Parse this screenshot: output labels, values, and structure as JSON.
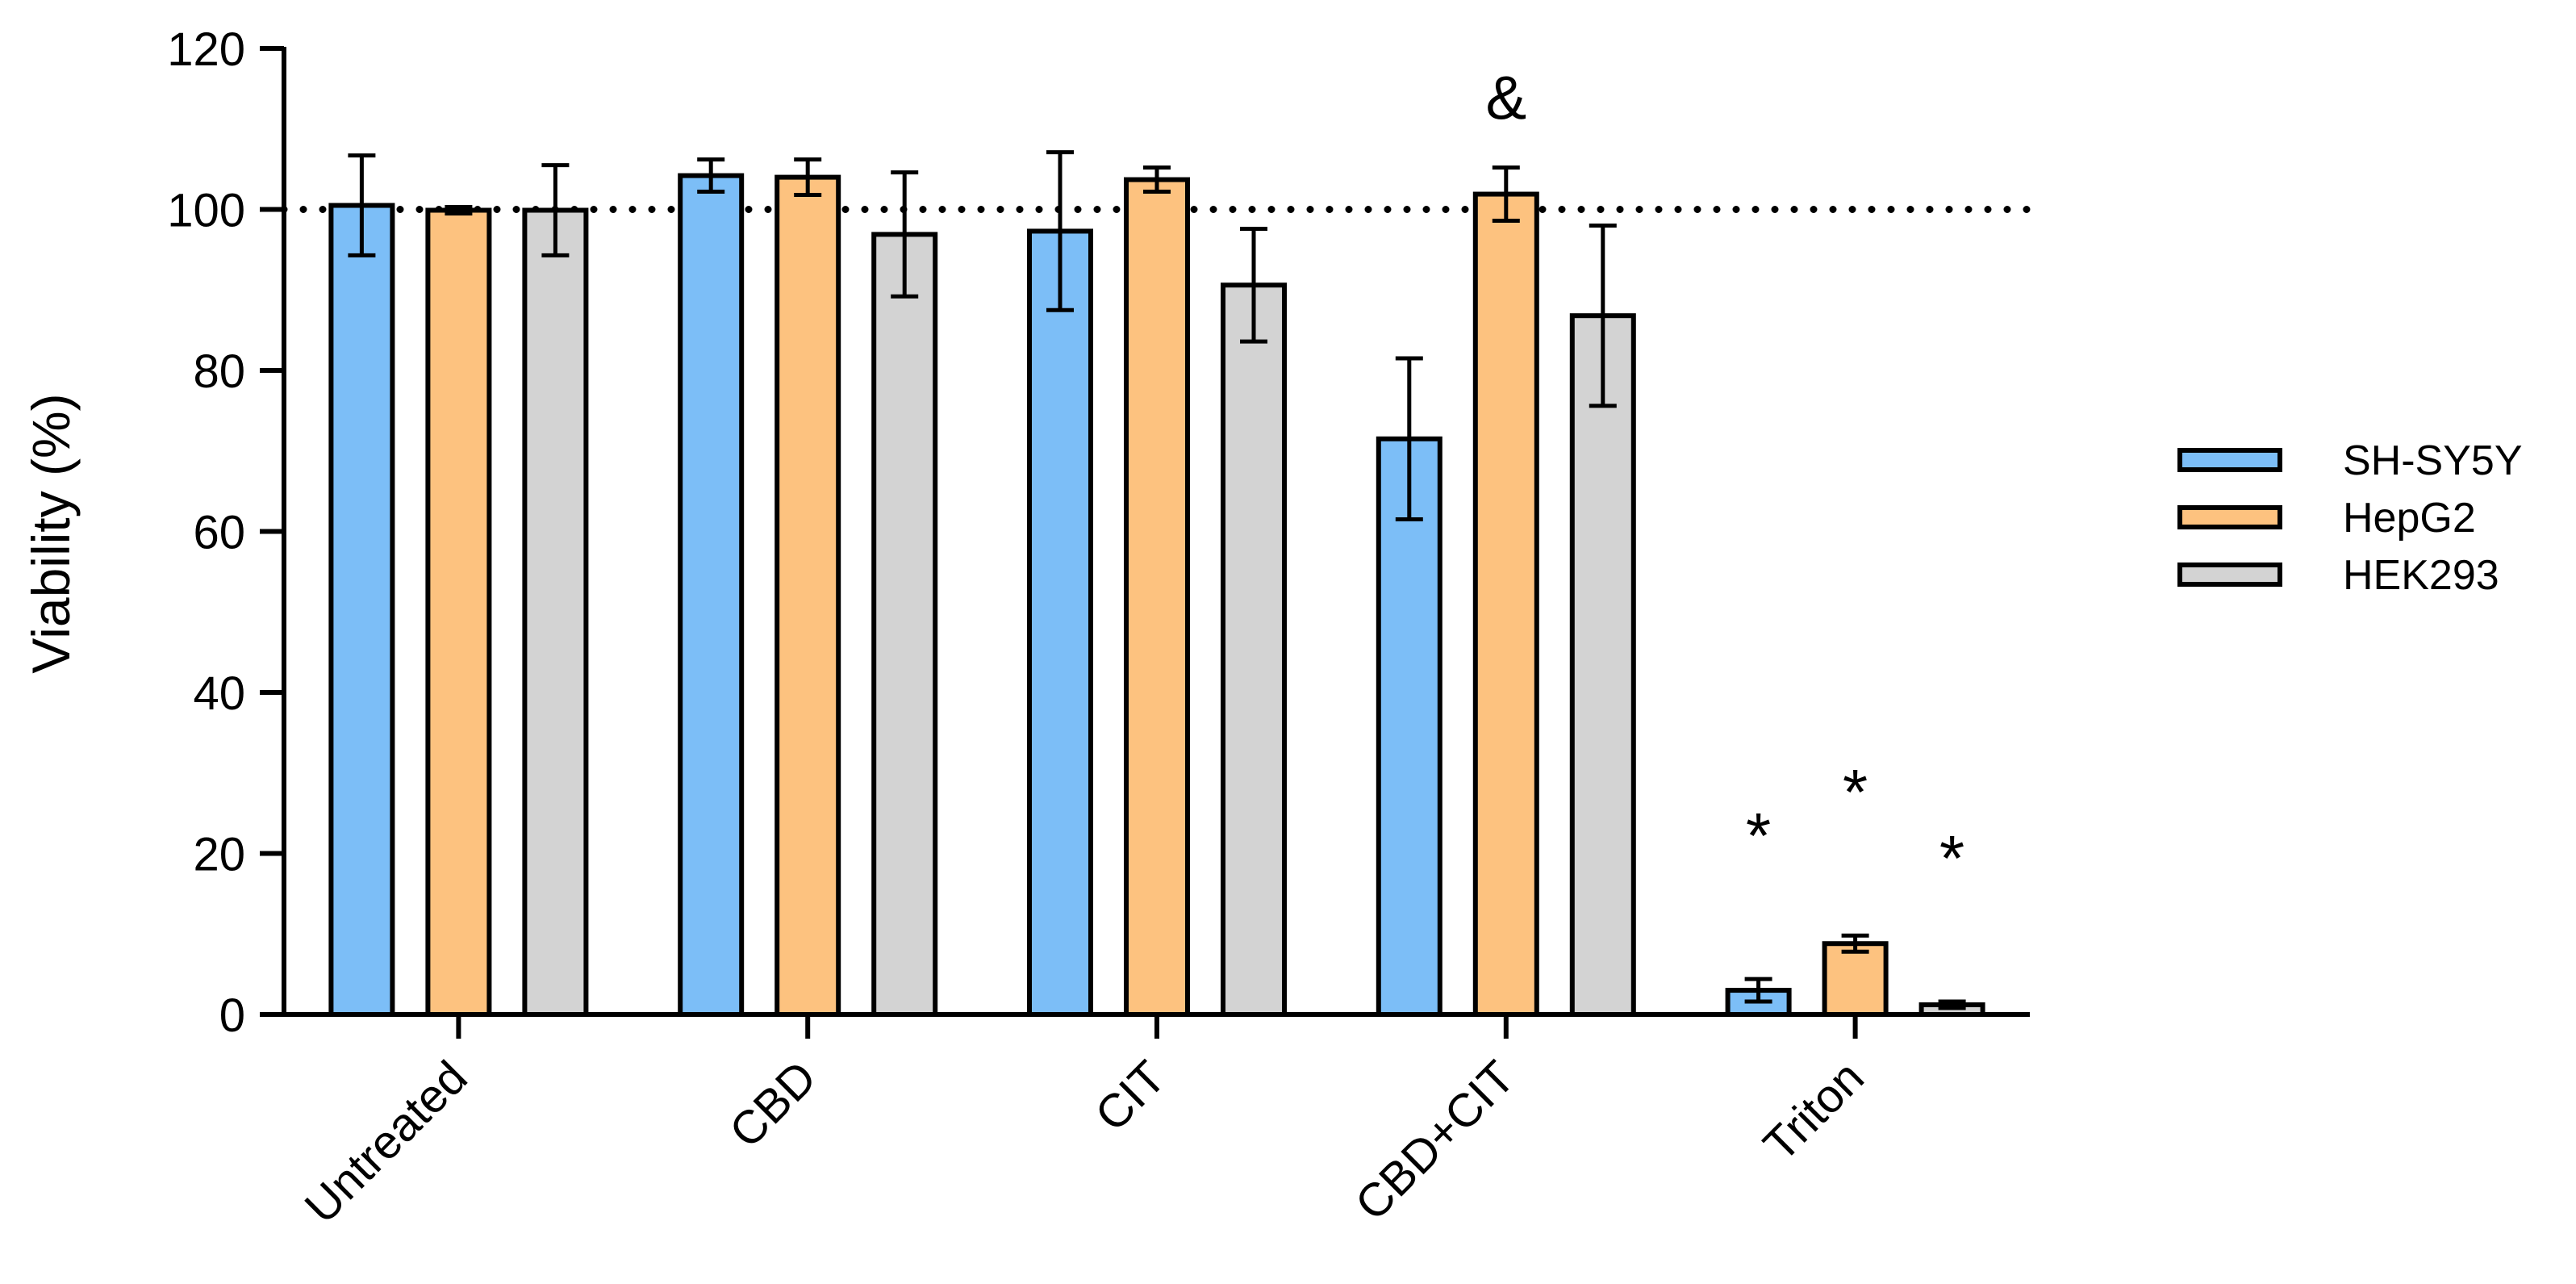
{
  "chart_data": {
    "type": "bar",
    "title": "",
    "xlabel": "",
    "ylabel": "Viability (%)",
    "ylim": [
      0,
      120
    ],
    "yticks": [
      0,
      20,
      40,
      60,
      80,
      100,
      120
    ],
    "categories": [
      "Untreated",
      "CBD",
      "CIT",
      "CBD+CIT",
      "Triton"
    ],
    "series": [
      {
        "name": "SH-SY5Y",
        "color": "#7cbef7",
        "values": [
          100.5,
          104.2,
          97.3,
          71.5,
          3.0
        ],
        "errors": [
          6.2,
          2.0,
          9.8,
          10.0,
          1.4
        ]
      },
      {
        "name": "HepG2",
        "color": "#fdc27f",
        "values": [
          99.9,
          104.0,
          103.7,
          101.9,
          8.8
        ],
        "errors": [
          0.4,
          2.2,
          1.5,
          3.3,
          1.0
        ]
      },
      {
        "name": "HEK293",
        "color": "#d3d3d3",
        "values": [
          99.9,
          96.9,
          90.6,
          86.8,
          1.2
        ],
        "errors": [
          5.6,
          7.7,
          7.0,
          11.2,
          0.4
        ]
      }
    ],
    "reference_line": {
      "value": 100,
      "style": "dotted"
    },
    "annotations": [
      {
        "text": "&",
        "category": "CBD+CIT",
        "series": "HepG2"
      },
      {
        "text": "*",
        "category": "Triton",
        "series": "SH-SY5Y"
      },
      {
        "text": "*",
        "category": "Triton",
        "series": "HepG2"
      },
      {
        "text": "*",
        "category": "Triton",
        "series": "HEK293"
      }
    ],
    "legend": {
      "position": "right"
    }
  }
}
